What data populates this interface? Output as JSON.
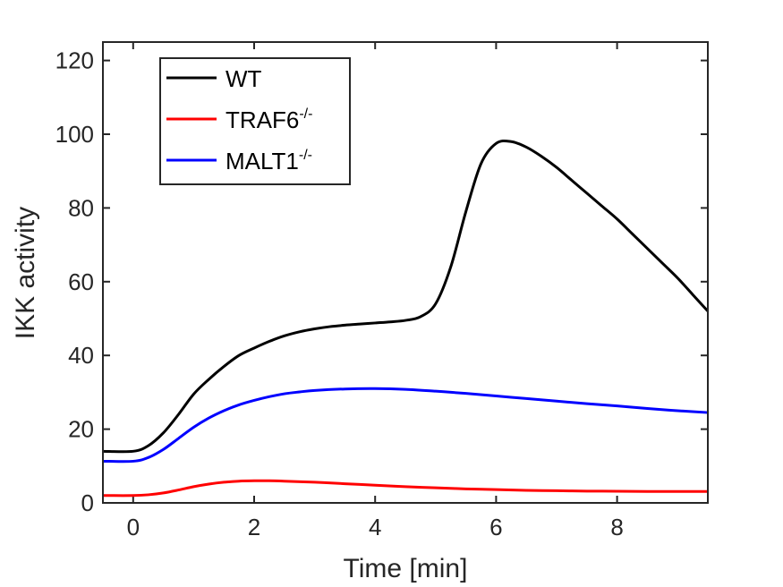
{
  "chart_data": {
    "type": "line",
    "xlabel": "Time [min]",
    "ylabel": "IKK activity",
    "xlim": [
      -0.5,
      9.5
    ],
    "ylim": [
      0,
      125
    ],
    "xticks": [
      0,
      2,
      4,
      6,
      8
    ],
    "yticks": [
      0,
      20,
      40,
      60,
      80,
      100,
      120
    ],
    "grid": false,
    "legend_position": "top-left",
    "series": [
      {
        "name": "WT",
        "label_sup": "",
        "color": "#000000",
        "x": [
          -0.5,
          0,
          0.25,
          0.5,
          0.75,
          1,
          1.25,
          1.5,
          1.75,
          2,
          2.25,
          2.5,
          2.75,
          3,
          3.25,
          3.5,
          3.75,
          4,
          4.25,
          4.5,
          4.75,
          5,
          5.25,
          5.5,
          5.75,
          6,
          6.25,
          6.5,
          6.75,
          7,
          7.25,
          7.5,
          7.75,
          8,
          8.25,
          8.5,
          8.75,
          9,
          9.25,
          9.5
        ],
        "y": [
          14,
          14,
          15.5,
          19,
          24,
          29.5,
          33.5,
          37,
          40,
          42,
          43.8,
          45.3,
          46.4,
          47.2,
          47.8,
          48.2,
          48.5,
          48.8,
          49.1,
          49.5,
          50.5,
          54,
          64,
          79,
          92,
          97.5,
          98,
          96.5,
          94,
          91,
          87.5,
          84,
          80.5,
          77,
          73,
          69,
          65,
          61,
          56.5,
          52
        ]
      },
      {
        "name": "TRAF6",
        "label_sup": "-/-",
        "color": "#ff0000",
        "x": [
          -0.5,
          0,
          0.25,
          0.5,
          0.75,
          1,
          1.25,
          1.5,
          1.75,
          2,
          2.25,
          2.5,
          3,
          3.5,
          4,
          4.5,
          5,
          5.5,
          6,
          6.5,
          7,
          7.5,
          8,
          8.5,
          9,
          9.5
        ],
        "y": [
          2,
          2,
          2.2,
          2.7,
          3.5,
          4.4,
          5.1,
          5.6,
          5.9,
          6,
          6,
          5.9,
          5.6,
          5.2,
          4.8,
          4.4,
          4.1,
          3.8,
          3.6,
          3.4,
          3.3,
          3.2,
          3.15,
          3.1,
          3.1,
          3.1
        ]
      },
      {
        "name": "MALT1",
        "label_sup": "-/-",
        "color": "#0000ff",
        "x": [
          -0.5,
          0,
          0.25,
          0.5,
          0.75,
          1,
          1.25,
          1.5,
          1.75,
          2,
          2.25,
          2.5,
          2.75,
          3,
          3.5,
          4,
          4.5,
          5,
          5.5,
          6,
          6.5,
          7,
          7.5,
          8,
          8.5,
          9,
          9.5
        ],
        "y": [
          11.3,
          11.3,
          12.3,
          14.5,
          17.5,
          20.5,
          23,
          25,
          26.6,
          27.8,
          28.8,
          29.6,
          30.1,
          30.5,
          30.9,
          31,
          30.8,
          30.3,
          29.7,
          29,
          28.3,
          27.6,
          26.9,
          26.3,
          25.6,
          25,
          24.5
        ]
      }
    ]
  }
}
